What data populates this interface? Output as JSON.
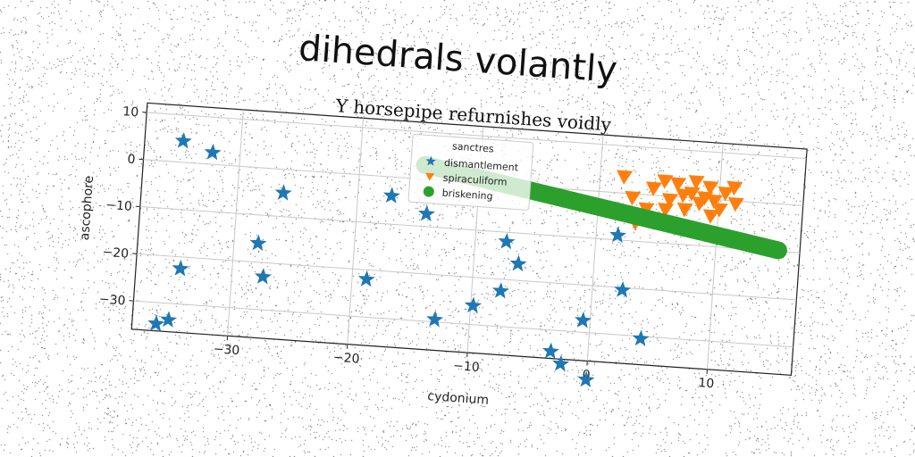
{
  "title": "dihedrals volantly",
  "chart_data": {
    "type": "scatter",
    "subtitle": "Y horsepipe refurnishes voidly",
    "xlabel": "cydonium",
    "ylabel": "ascophore",
    "xlim": [
      -38,
      17
    ],
    "ylim": [
      -36,
      12
    ],
    "xticks": [
      -30,
      -20,
      -10,
      0,
      10
    ],
    "yticks": [
      10,
      0,
      -10,
      -20,
      -30
    ],
    "grid": true,
    "legend": {
      "position": "top-center",
      "title": "sanctres",
      "entries": [
        "dismantlement",
        "spiraculiform",
        "briskening"
      ]
    },
    "series": [
      {
        "name": "dismantlement",
        "marker": "star",
        "color": "#1f77b4",
        "points": [
          [
            -34.8,
            4.5
          ],
          [
            -32.3,
            2.5
          ],
          [
            -26.2,
            -5.0
          ],
          [
            -28.0,
            -16.0
          ],
          [
            -34.3,
            -22.5
          ],
          [
            -27.4,
            -23.0
          ],
          [
            -35.0,
            -33.5
          ],
          [
            -36.0,
            -34.5
          ],
          [
            -18.8,
            -22.0
          ],
          [
            -17.2,
            -4.0
          ],
          [
            -14.2,
            -7.3
          ],
          [
            -12.9,
            -29.5
          ],
          [
            -7.4,
            -12.0
          ],
          [
            -6.3,
            -16.5
          ],
          [
            -7.6,
            -22.5
          ],
          [
            -9.8,
            -26.0
          ],
          [
            -3.1,
            -34.5
          ],
          [
            -2.2,
            -37.0
          ],
          [
            -0.6,
            -27.5
          ],
          [
            0.0,
            -40.0
          ],
          [
            1.8,
            -9.0
          ],
          [
            2.5,
            -20.5
          ],
          [
            4.3,
            -30.5
          ]
        ]
      },
      {
        "name": "spiraculiform",
        "marker": "triangle_down",
        "color": "#ff7f0e",
        "points": [
          [
            2.0,
            3.5
          ],
          [
            2.8,
            -0.8
          ],
          [
            3.2,
            -6.0
          ],
          [
            4.5,
            1.5
          ],
          [
            5.4,
            3.2
          ],
          [
            5.9,
            -0.7
          ],
          [
            6.5,
            2.8
          ],
          [
            7.0,
            0.5
          ],
          [
            7.2,
            -2.5
          ],
          [
            7.7,
            1.0
          ],
          [
            8.0,
            3.5
          ],
          [
            8.4,
            -1.0
          ],
          [
            8.8,
            0.2
          ],
          [
            9.2,
            2.5
          ],
          [
            9.6,
            -0.3
          ],
          [
            10.1,
            -2.0
          ],
          [
            10.5,
            1.5
          ],
          [
            11.2,
            2.8
          ],
          [
            11.4,
            -0.6
          ],
          [
            9.4,
            -3.5
          ],
          [
            6.0,
            -5.5
          ],
          [
            7.6,
            -6.8
          ],
          [
            4.0,
            -3.0
          ],
          [
            5.6,
            -2.8
          ]
        ]
      },
      {
        "name": "briskening",
        "marker": "circle",
        "color": "#2ca02c",
        "x_range": [
          -14.6,
          15.2
        ],
        "y_range": [
          3.0,
          -9.8
        ],
        "count": 120
      }
    ]
  }
}
